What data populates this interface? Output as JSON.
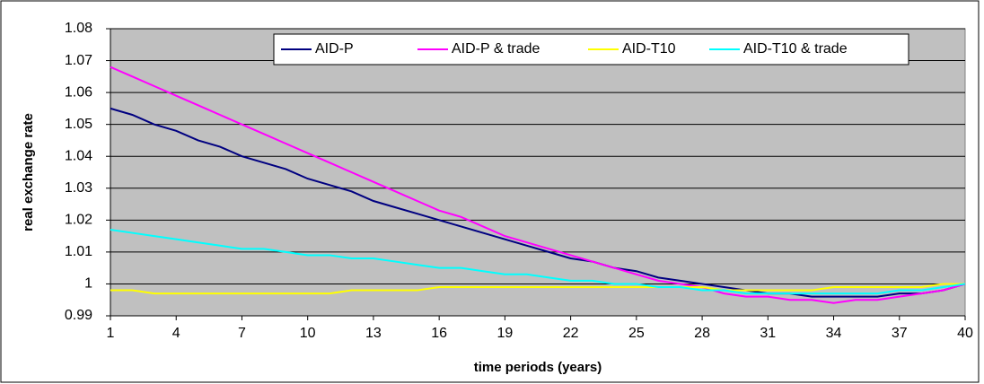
{
  "chart_data": {
    "type": "line",
    "x_label": "time periods (years)",
    "y_label": "real exchange rate",
    "x": [
      1,
      2,
      3,
      4,
      5,
      6,
      7,
      8,
      9,
      10,
      11,
      12,
      13,
      14,
      15,
      16,
      17,
      18,
      19,
      20,
      21,
      22,
      23,
      24,
      25,
      26,
      27,
      28,
      29,
      30,
      31,
      32,
      33,
      34,
      35,
      36,
      37,
      38,
      39,
      40
    ],
    "series": [
      {
        "name": "AID-P",
        "color": "#000080",
        "values": [
          1.055,
          1.053,
          1.05,
          1.048,
          1.045,
          1.043,
          1.04,
          1.038,
          1.036,
          1.033,
          1.031,
          1.029,
          1.026,
          1.024,
          1.022,
          1.02,
          1.018,
          1.016,
          1.014,
          1.012,
          1.01,
          1.008,
          1.007,
          1.005,
          1.004,
          1.002,
          1.001,
          1.0,
          0.999,
          0.998,
          0.997,
          0.997,
          0.996,
          0.996,
          0.996,
          0.996,
          0.997,
          0.997,
          0.998,
          1.0
        ]
      },
      {
        "name": "AID-P & trade",
        "color": "#ff00ff",
        "values": [
          1.068,
          1.065,
          1.062,
          1.059,
          1.056,
          1.053,
          1.05,
          1.047,
          1.044,
          1.041,
          1.038,
          1.035,
          1.032,
          1.029,
          1.026,
          1.023,
          1.021,
          1.018,
          1.015,
          1.013,
          1.011,
          1.009,
          1.007,
          1.005,
          1.003,
          1.001,
          1.0,
          0.999,
          0.997,
          0.996,
          0.996,
          0.995,
          0.995,
          0.994,
          0.995,
          0.995,
          0.996,
          0.997,
          0.998,
          1.0
        ]
      },
      {
        "name": "AID-T10",
        "color": "#ffff00",
        "values": [
          0.998,
          0.998,
          0.997,
          0.997,
          0.997,
          0.997,
          0.997,
          0.997,
          0.997,
          0.997,
          0.997,
          0.998,
          0.998,
          0.998,
          0.998,
          0.999,
          0.999,
          0.999,
          0.999,
          0.999,
          0.999,
          0.999,
          0.999,
          0.999,
          0.999,
          0.999,
          0.999,
          0.999,
          0.998,
          0.998,
          0.998,
          0.998,
          0.998,
          0.999,
          0.999,
          0.999,
          0.999,
          0.999,
          1.0,
          1.0
        ]
      },
      {
        "name": "AID-T10 & trade",
        "color": "#00ffff",
        "values": [
          1.017,
          1.016,
          1.015,
          1.014,
          1.013,
          1.012,
          1.011,
          1.011,
          1.01,
          1.009,
          1.009,
          1.008,
          1.008,
          1.007,
          1.006,
          1.005,
          1.005,
          1.004,
          1.003,
          1.003,
          1.002,
          1.001,
          1.001,
          1.0,
          1.0,
          0.999,
          0.999,
          0.998,
          0.998,
          0.997,
          0.997,
          0.997,
          0.997,
          0.997,
          0.997,
          0.997,
          0.998,
          0.998,
          0.999,
          1.0
        ]
      }
    ],
    "xlim": [
      1,
      40
    ],
    "xticks": [
      1,
      4,
      7,
      10,
      13,
      16,
      19,
      22,
      25,
      28,
      31,
      34,
      37,
      40
    ],
    "ylim": [
      0.99,
      1.08
    ],
    "yticks": [
      0.99,
      1,
      1.01,
      1.02,
      1.03,
      1.04,
      1.05,
      1.06,
      1.07,
      1.08
    ],
    "grid": true,
    "legend": "top",
    "plot_background": "#c0c0c0"
  }
}
